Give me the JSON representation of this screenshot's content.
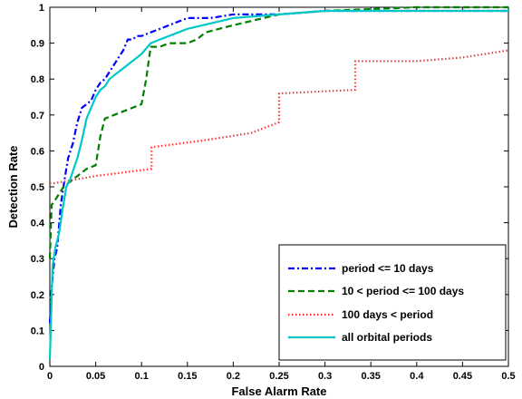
{
  "chart_data": {
    "type": "line",
    "title": "",
    "xlabel": "False Alarm Rate",
    "ylabel": "Detection Rate",
    "xlim": [
      0,
      0.5
    ],
    "ylim": [
      0,
      1
    ],
    "xticks": [
      0,
      0.05,
      0.1,
      0.15,
      0.2,
      0.25,
      0.3,
      0.35,
      0.4,
      0.45,
      0.5
    ],
    "xtick_labels": [
      "0",
      "0.05",
      "0.1",
      "0.15",
      "0.2",
      "0.25",
      "0.3",
      "0.35",
      "0.4",
      "0.45",
      "0.5"
    ],
    "yticks": [
      0,
      0.1,
      0.2,
      0.3,
      0.4,
      0.5,
      0.6,
      0.7,
      0.8,
      0.9,
      1
    ],
    "ytick_labels": [
      "0",
      "0.1",
      "0.2",
      "0.3",
      "0.4",
      "0.5",
      "0.6",
      "0.7",
      "0.8",
      "0.9",
      "1"
    ],
    "grid": false,
    "legend_position": "bottom-right",
    "series": [
      {
        "name": "period <= 10 days",
        "color": "#0000ff",
        "dash": "dash-dot",
        "x": [
          0,
          0.002,
          0.005,
          0.008,
          0.012,
          0.016,
          0.02,
          0.025,
          0.03,
          0.035,
          0.04,
          0.045,
          0.05,
          0.055,
          0.06,
          0.065,
          0.07,
          0.075,
          0.08,
          0.085,
          0.09,
          0.095,
          0.1,
          0.11,
          0.12,
          0.13,
          0.15,
          0.175,
          0.2,
          0.25,
          0.3,
          0.4,
          0.5
        ],
        "y": [
          0.12,
          0.22,
          0.3,
          0.33,
          0.45,
          0.52,
          0.58,
          0.62,
          0.68,
          0.72,
          0.73,
          0.74,
          0.77,
          0.79,
          0.8,
          0.82,
          0.84,
          0.86,
          0.88,
          0.91,
          0.91,
          0.92,
          0.92,
          0.93,
          0.94,
          0.95,
          0.97,
          0.97,
          0.98,
          0.98,
          0.99,
          0.99,
          0.99
        ]
      },
      {
        "name": "10 < period <= 100 days",
        "color": "#008000",
        "dash": "dashed",
        "x": [
          0,
          0.002,
          0.005,
          0.01,
          0.015,
          0.02,
          0.03,
          0.04,
          0.05,
          0.055,
          0.06,
          0.07,
          0.08,
          0.09,
          0.1,
          0.105,
          0.11,
          0.12,
          0.13,
          0.14,
          0.15,
          0.16,
          0.17,
          0.2,
          0.25,
          0.3,
          0.4,
          0.5
        ],
        "y": [
          0.3,
          0.45,
          0.46,
          0.48,
          0.5,
          0.51,
          0.53,
          0.55,
          0.56,
          0.64,
          0.69,
          0.7,
          0.71,
          0.72,
          0.73,
          0.8,
          0.89,
          0.89,
          0.9,
          0.9,
          0.9,
          0.91,
          0.93,
          0.95,
          0.98,
          0.99,
          1.0,
          1.0
        ]
      },
      {
        "name": "100 days < period",
        "color": "#ff3333",
        "dash": "dotted",
        "x": [
          0,
          0.005,
          0.05,
          0.111,
          0.111,
          0.17,
          0.22,
          0.25,
          0.25,
          0.333,
          0.333,
          0.4,
          0.45,
          0.5
        ],
        "y": [
          0.51,
          0.51,
          0.53,
          0.55,
          0.61,
          0.63,
          0.65,
          0.68,
          0.76,
          0.77,
          0.85,
          0.85,
          0.86,
          0.88
        ]
      },
      {
        "name": "all orbital periods",
        "color": "#00c8c8",
        "dash": "solid",
        "x": [
          0,
          0.003,
          0.006,
          0.01,
          0.014,
          0.018,
          0.022,
          0.026,
          0.03,
          0.035,
          0.04,
          0.045,
          0.05,
          0.055,
          0.06,
          0.065,
          0.07,
          0.075,
          0.08,
          0.085,
          0.09,
          0.1,
          0.11,
          0.12,
          0.15,
          0.2,
          0.25,
          0.3,
          0.4,
          0.5
        ],
        "y": [
          0.02,
          0.28,
          0.33,
          0.37,
          0.44,
          0.5,
          0.52,
          0.55,
          0.58,
          0.63,
          0.69,
          0.72,
          0.75,
          0.77,
          0.78,
          0.8,
          0.81,
          0.82,
          0.83,
          0.84,
          0.85,
          0.87,
          0.9,
          0.91,
          0.94,
          0.97,
          0.98,
          0.99,
          0.99,
          0.99
        ]
      }
    ]
  }
}
